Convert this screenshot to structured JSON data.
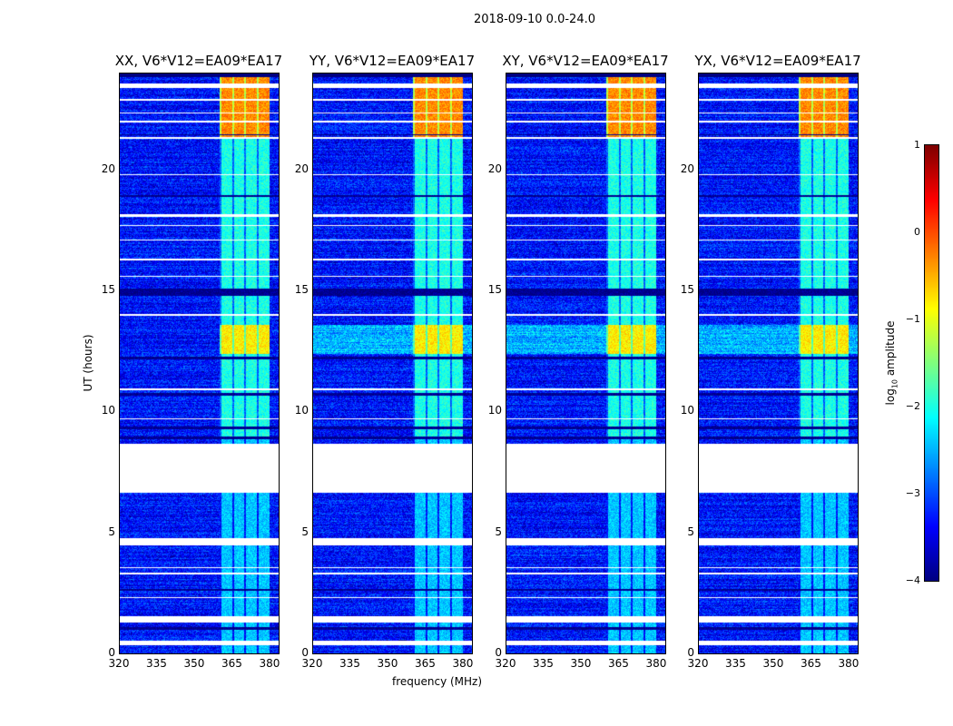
{
  "chart_data": {
    "type": "heatmap",
    "title": "2018-09-10 0.0-24.0",
    "xlabel": "frequency (MHz)",
    "ylabel": "UT (hours)",
    "xlim": [
      320,
      384
    ],
    "ylim": [
      0,
      24
    ],
    "xticks": [
      "320",
      "335",
      "350",
      "365",
      "380"
    ],
    "xtick_values": [
      320,
      335,
      350,
      365,
      380
    ],
    "yticks": [
      "0",
      "5",
      "10",
      "15",
      "20"
    ],
    "ytick_values": [
      0,
      5,
      10,
      15,
      20
    ],
    "panels": [
      {
        "title": "XX, V6*V12=EA09*EA17",
        "seed": 1
      },
      {
        "title": "YY, V6*V12=EA09*EA17",
        "seed": 2
      },
      {
        "title": "XY, V6*V12=EA09*EA17",
        "seed": 3
      },
      {
        "title": "YX, V6*V12=EA09*EA17",
        "seed": 4
      }
    ],
    "colorbar": {
      "label": "log10 amplitude",
      "label_main": "log",
      "label_sub": "10",
      "label_rest": " amplitude",
      "range": [
        -4,
        1
      ],
      "ticks": [
        "1",
        "0",
        "−1",
        "−2",
        "−3",
        "−4"
      ],
      "tick_values": [
        1,
        0,
        -1,
        -2,
        -3,
        -4
      ],
      "colormap": "jet"
    },
    "features": {
      "background_level": -3.3,
      "rfi_band_mhz": [
        360,
        380
      ],
      "rfi_level_late": -0.3,
      "rfi_level_12_13h": -0.8,
      "rfi_level_other": -2.0,
      "flagged_hours": [
        [
          0.35,
          0.55
        ],
        [
          1.3,
          1.55
        ],
        [
          2.3,
          2.35
        ],
        [
          3.3,
          3.35
        ],
        [
          3.55,
          3.6
        ],
        [
          4.5,
          4.8
        ],
        [
          6.65,
          8.7
        ],
        [
          9.7,
          9.75
        ],
        [
          10.9,
          11.0
        ],
        [
          14.0,
          14.05
        ],
        [
          15.6,
          15.65
        ],
        [
          16.3,
          16.35
        ],
        [
          17.1,
          17.15
        ],
        [
          17.7,
          17.75
        ],
        [
          18.1,
          18.2
        ],
        [
          19.8,
          19.85
        ],
        [
          21.3,
          21.4
        ],
        [
          22.0,
          22.05
        ],
        [
          22.35,
          22.4
        ],
        [
          22.9,
          22.95
        ],
        [
          23.4,
          23.6
        ]
      ],
      "dark_hours": [
        [
          1.0,
          1.1
        ],
        [
          2.6,
          2.7
        ],
        [
          8.9,
          9.0
        ],
        [
          9.3,
          9.4
        ],
        [
          10.7,
          10.8
        ],
        [
          12.2,
          12.3
        ],
        [
          14.8,
          15.1
        ],
        [
          18.9,
          19.0
        ],
        [
          21.45,
          21.5
        ],
        [
          23.9,
          24.0
        ]
      ]
    }
  }
}
